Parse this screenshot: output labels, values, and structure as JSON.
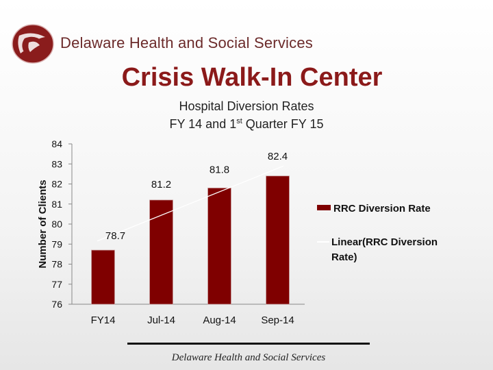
{
  "header": {
    "org_name": "Delaware Health and Social Services",
    "title": "Crisis Walk-In Center",
    "subtitle_line1": "Hospital Diversion Rates",
    "subtitle_line2_pre": "FY 14 and 1",
    "subtitle_line2_sup": "st",
    "subtitle_line2_post": " Quarter FY 15"
  },
  "footer": {
    "text": "Delaware Health and Social Services"
  },
  "colors": {
    "bar": "#7f0000",
    "title": "#8b1a1a",
    "trendline": "#ffffff"
  },
  "chart_data": {
    "type": "bar",
    "categories": [
      "FY14",
      "Jul-14",
      "Aug-14",
      "Sep-14"
    ],
    "values": [
      78.7,
      81.2,
      81.8,
      82.4
    ],
    "data_labels": [
      "78.7",
      "81.2",
      "81.8",
      "82.4"
    ],
    "xlabel": "",
    "ylabel": "Number of Clients",
    "ylim": [
      76,
      84
    ],
    "yticks": [
      "76",
      "77",
      "78",
      "79",
      "80",
      "81",
      "82",
      "83",
      "84"
    ],
    "grid": false,
    "legend_position": "right",
    "legend": [
      "RRC Diversion Rate",
      "Linear(RRC Diversion Rate)"
    ],
    "trendline": "linear"
  }
}
